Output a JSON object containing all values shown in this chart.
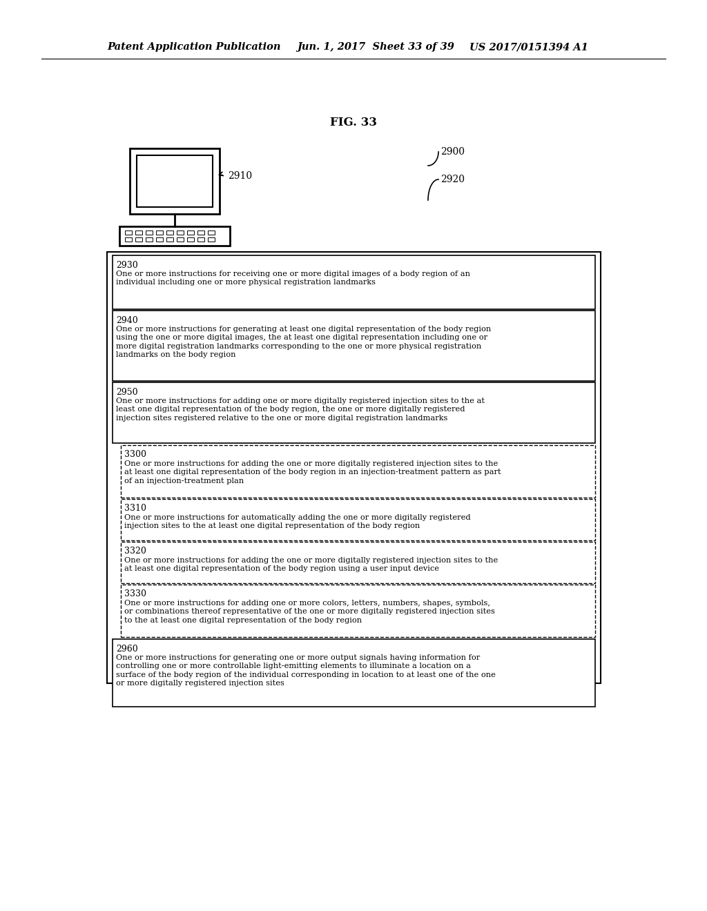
{
  "bg_color": "#ffffff",
  "header_left": "Patent Application Publication",
  "header_mid": "Jun. 1, 2017  Sheet 33 of 39",
  "header_right": "US 2017/0151394 A1",
  "fig_label": "FIG. 33",
  "computer_label": "2910",
  "outer_box_label": "2900",
  "arrow_label": "2920",
  "boxes": [
    {
      "id": "2930",
      "label": "2930",
      "text": "One or more instructions for receiving one or more digital images of a body region of an\nindividual including one or more physical registration landmarks",
      "dashed": false
    },
    {
      "id": "2940",
      "label": "2940",
      "text": "One or more instructions for generating at least one digital representation of the body region\nusing the one or more digital images, the at least one digital representation including one or\nmore digital registration landmarks corresponding to the one or more physical registration\nlandmarks on the body region",
      "dashed": false
    },
    {
      "id": "2950",
      "label": "2950",
      "text": "One or more instructions for adding one or more digitally registered injection sites to the at\nleast one digital representation of the body region, the one or more digitally registered\ninjection sites registered relative to the one or more digital registration landmarks",
      "dashed": false
    },
    {
      "id": "3300",
      "label": "3300",
      "text": "One or more instructions for adding the one or more digitally registered injection sites to the\nat least one digital representation of the body region in an injection-treatment pattern as part\nof an injection-treatment plan",
      "dashed": true
    },
    {
      "id": "3310",
      "label": "3310",
      "text": "One or more instructions for automatically adding the one or more digitally registered\ninjection sites to the at least one digital representation of the body region",
      "dashed": true
    },
    {
      "id": "3320",
      "label": "3320",
      "text": "One or more instructions for adding the one or more digitally registered injection sites to the\nat least one digital representation of the body region using a user input device",
      "dashed": true
    },
    {
      "id": "3330",
      "label": "3330",
      "text": "One or more instructions for adding one or more colors, letters, numbers, shapes, symbols,\nor combinations thereof representative of the one or more digitally registered injection sites\nto the at least one digital representation of the body region",
      "dashed": true
    },
    {
      "id": "2960",
      "label": "2960",
      "text": "One or more instructions for generating one or more output signals having information for\ncontrolling one or more controllable light-emitting elements to illuminate a location on a\nsurface of the body region of the individual corresponding in location to at least one of the one\nor more digitally registered injection sites",
      "dashed": false
    }
  ]
}
